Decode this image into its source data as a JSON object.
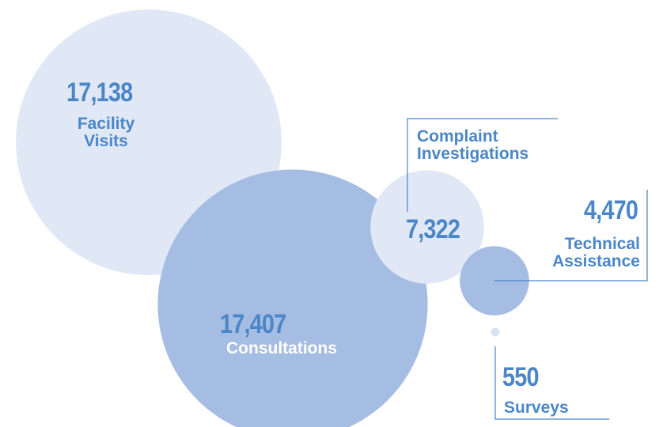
{
  "chart_data": {
    "type": "bubble",
    "categories": [
      "Facility Visits",
      "Consultations",
      "Complaint Investigations",
      "Technical Assistance",
      "Surveys"
    ],
    "values": [
      17138,
      17407,
      7322,
      4470,
      550
    ],
    "value_labels": [
      "17,138",
      "17,407",
      "7,322",
      "4,470",
      "550"
    ],
    "colors": [
      "#e1e8f5",
      "#a6bde3",
      "#e1e8f5",
      "#a6bde3",
      "#d8e1f0"
    ]
  }
}
